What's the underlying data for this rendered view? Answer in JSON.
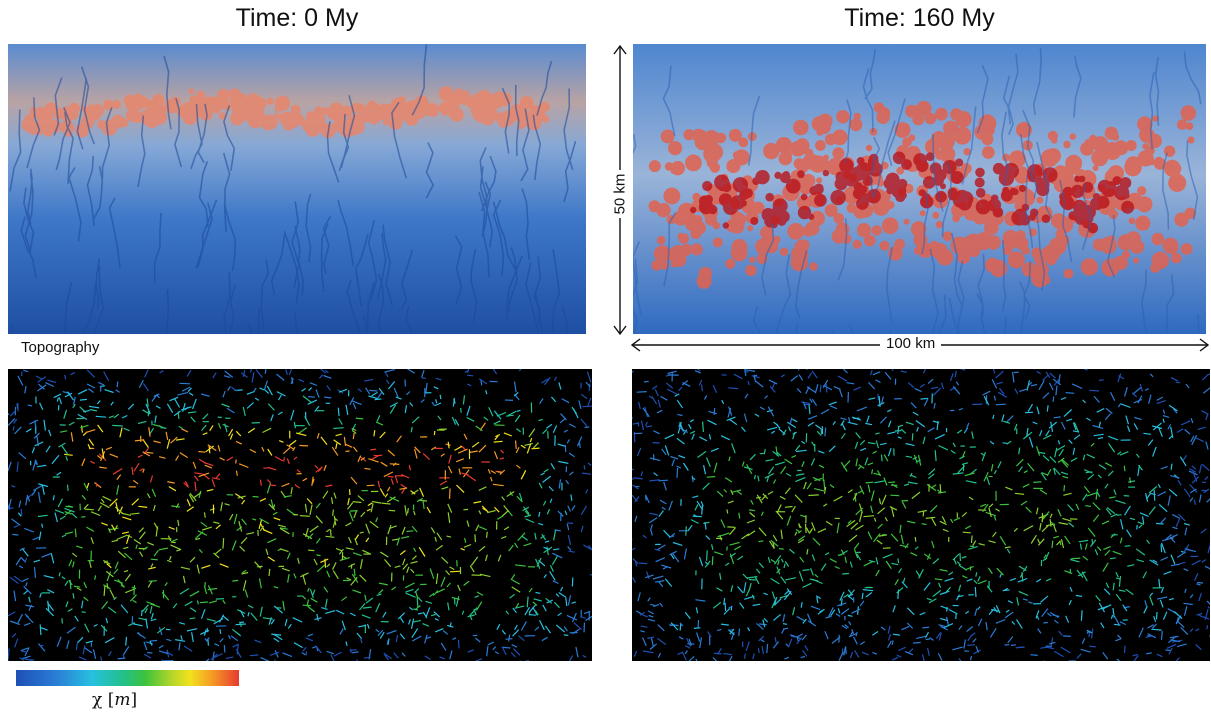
{
  "titles": {
    "left": "Time: 0 My",
    "right": "Time: 160 My"
  },
  "panels": {
    "topography_label": "Topography",
    "colorbar_label_symbol": "χ",
    "colorbar_label_unit": "m"
  },
  "scale_bars": {
    "vertical": "50 km",
    "horizontal": "100 km"
  },
  "colors": {
    "low_elevation": "#2d63b8",
    "high_elevation": "#d9352a",
    "chi_low": "#1e50b4",
    "chi_high": "#e83a30"
  }
}
